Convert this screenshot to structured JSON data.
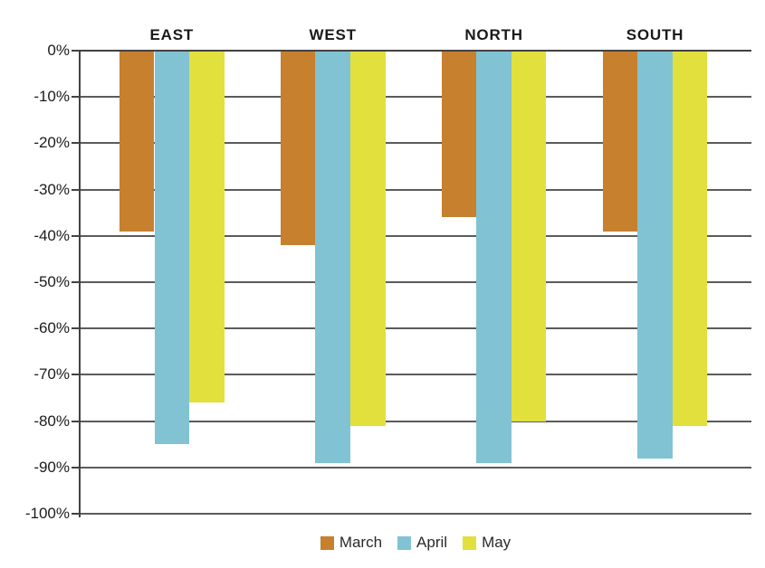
{
  "chart_data": {
    "type": "bar",
    "orientation": "vertical",
    "title": "",
    "categories": [
      "EAST",
      "WEST",
      "NORTH",
      "SOUTH"
    ],
    "series": [
      {
        "name": "March",
        "color": "#c6802e",
        "values": [
          -39,
          -42,
          -36,
          -39
        ]
      },
      {
        "name": "April",
        "color": "#81c3d3",
        "values": [
          -85,
          -89,
          -89,
          -88
        ]
      },
      {
        "name": "May",
        "color": "#e1e03d",
        "values": [
          -76,
          -81,
          -80,
          -81
        ]
      }
    ],
    "y_axis": {
      "tick_labels": [
        "0%",
        "-10%",
        "-20%",
        "-30%",
        "-40%",
        "-50%",
        "-60%",
        "-70%",
        "-80%",
        "-90%",
        "-100%"
      ],
      "min": -100,
      "max": 0,
      "step": 10
    },
    "xlabel": "",
    "ylabel": "",
    "grid": true,
    "legend_position": "bottom",
    "background_color": "#ffffff",
    "gridline_color": "#5b5b5b",
    "text_color": "#1c1c1c"
  }
}
